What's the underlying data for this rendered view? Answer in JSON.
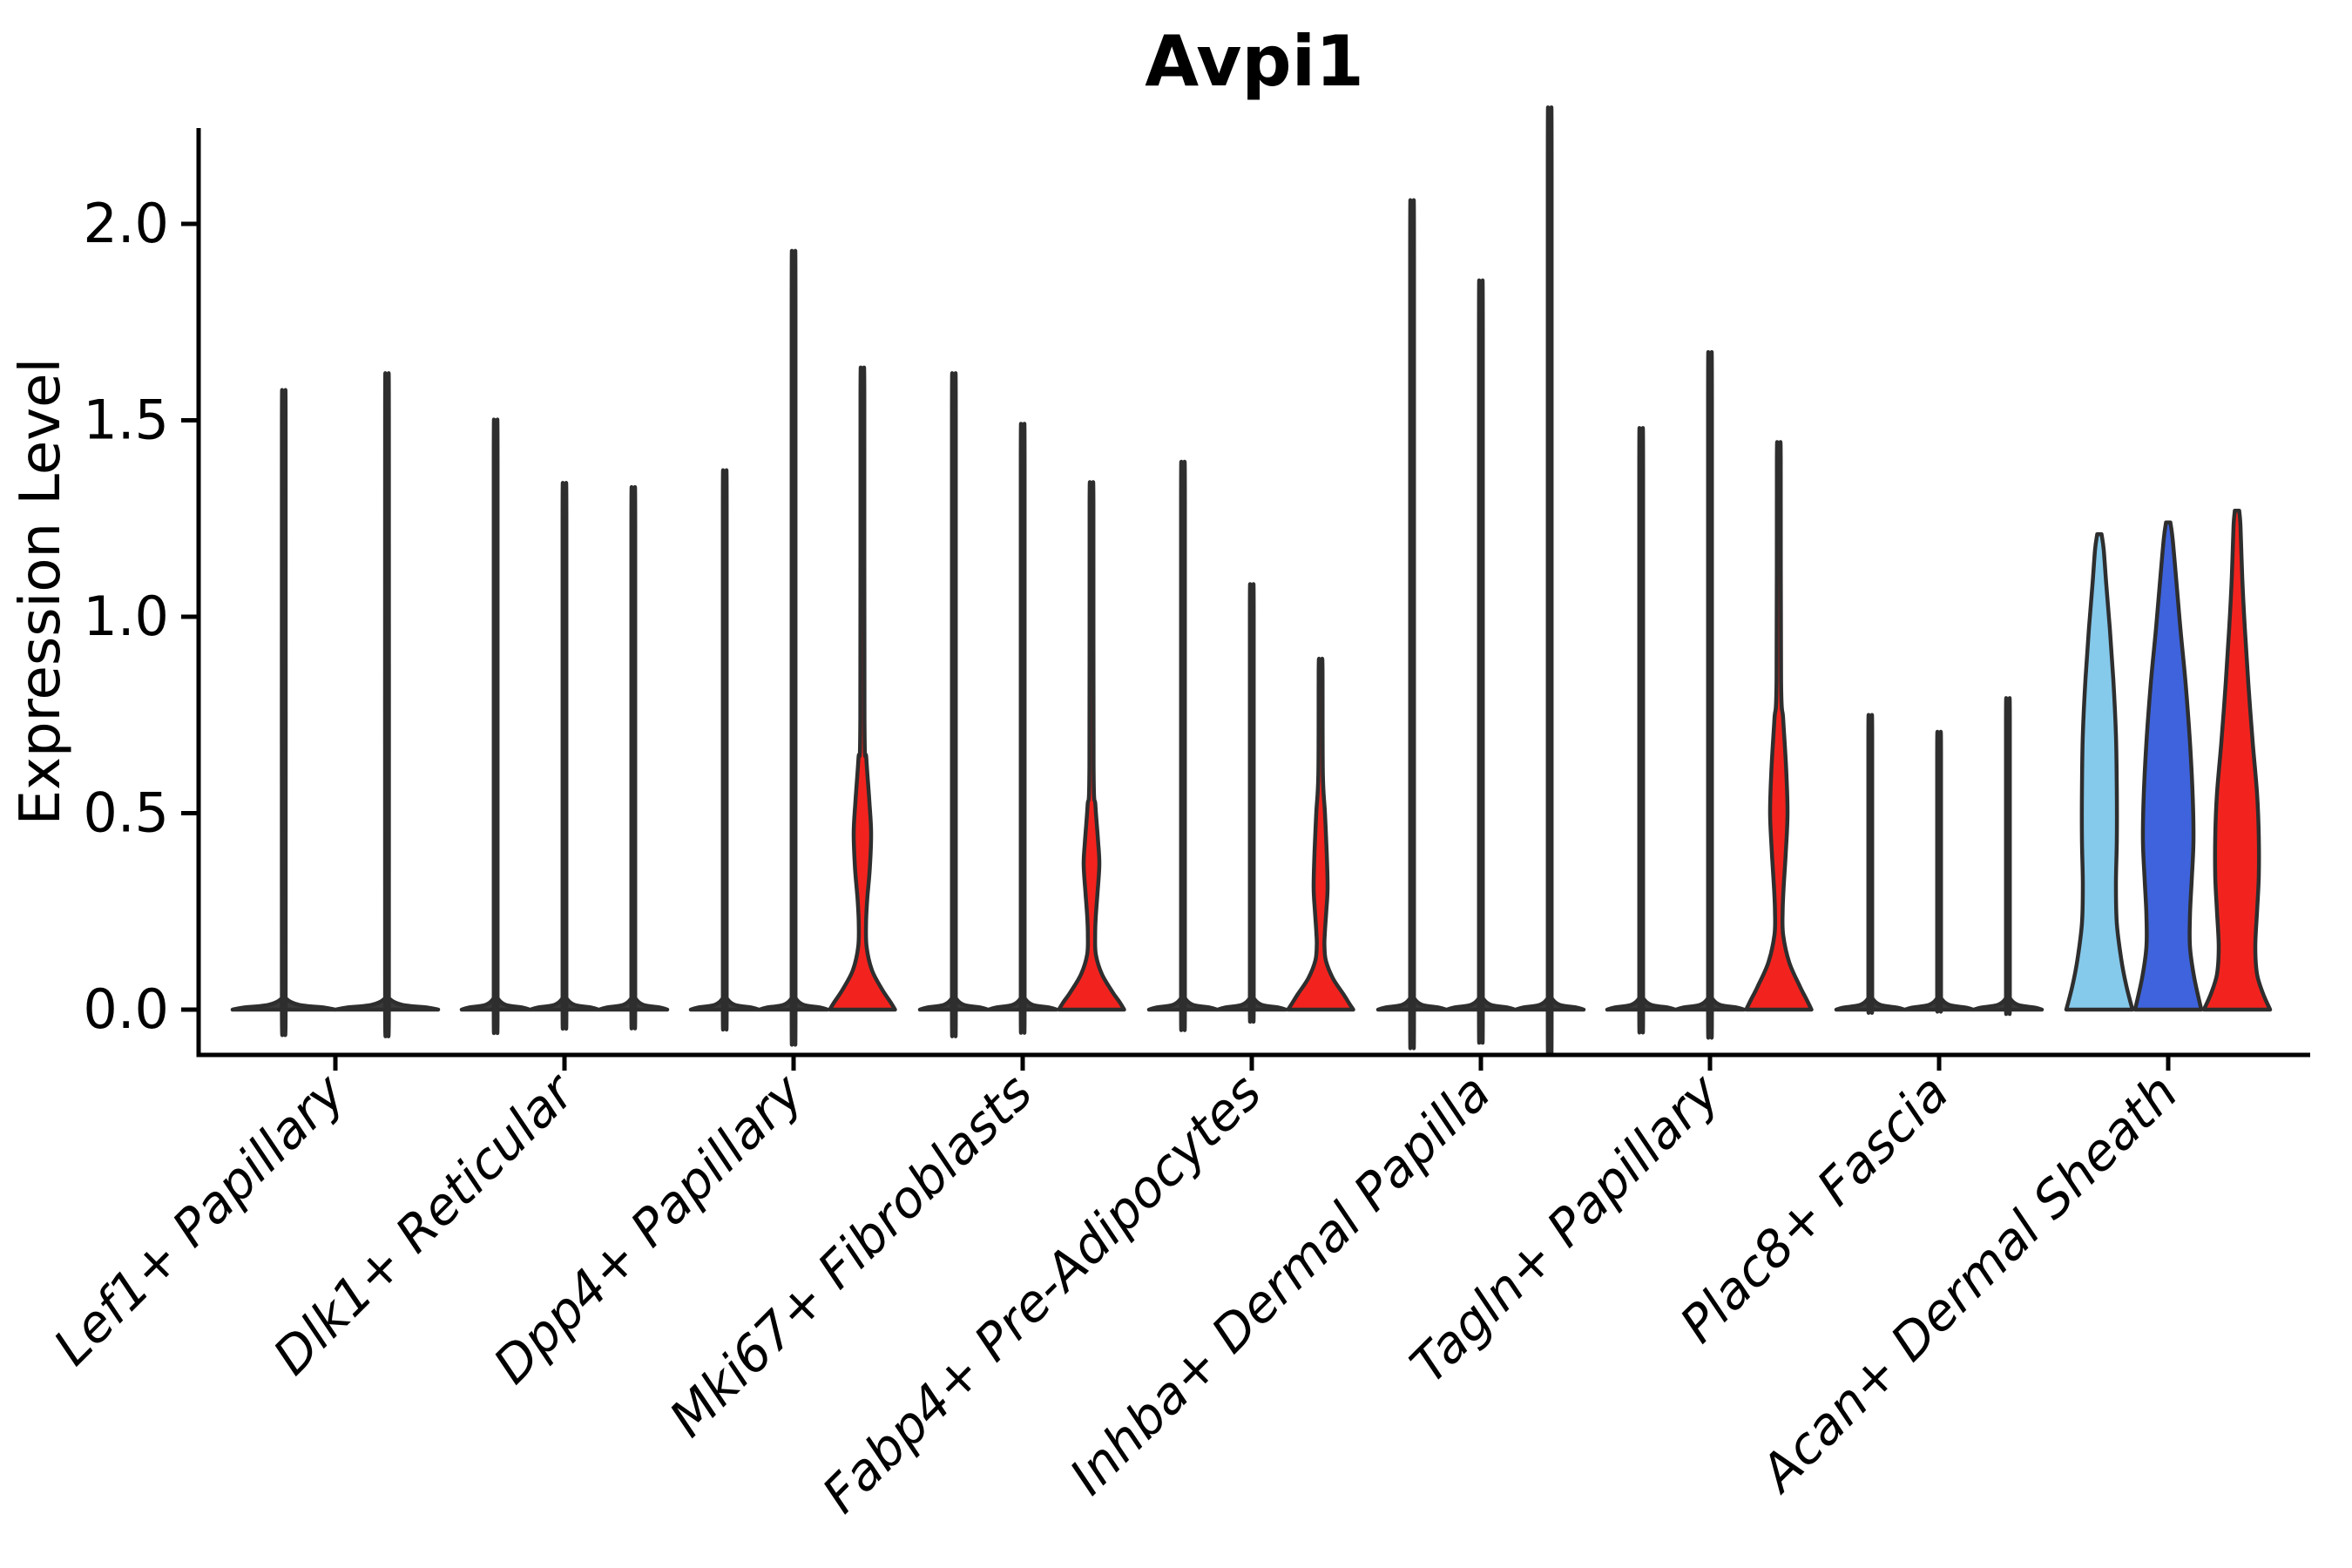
{
  "title": "Avpi1",
  "chart_data": {
    "type": "violin",
    "title": "Avpi1",
    "xlabel": "",
    "ylabel": "Expression Level",
    "ytick_labels": [
      "0.0",
      "0.5",
      "1.0",
      "1.5",
      "2.0"
    ],
    "ytick_values": [
      0.0,
      0.5,
      1.0,
      1.5,
      2.0
    ],
    "ylim": [
      -0.06,
      2.24
    ],
    "grid": false,
    "legend_position": "none",
    "categories": [
      "Lef1+ Papillary",
      "Dlk1+ Reticular",
      "Dpp4+ Papillary",
      "Mki67+ Fibroblasts",
      "Fabp4+ Pre-Adipocytes",
      "Inhba+ Dermal Papilla",
      "Tagln+ Papillary",
      "Plac8+ Fascia",
      "Acan+ Dermal Sheath"
    ],
    "palette": {
      "outline": "#2e2e2e",
      "spike": "#3a3a3a",
      "red": "#f2231e",
      "light_blue": "#85c9eb",
      "dark_blue": "#3e63dc",
      "axis": "#000000"
    },
    "clusters": [
      {
        "label": "Lef1+ Papillary",
        "violins": [
          {
            "kind": "spike",
            "color": "spike",
            "max": 1.48
          },
          {
            "kind": "spike",
            "color": "spike",
            "max": 1.52
          }
        ]
      },
      {
        "label": "Dlk1+ Reticular",
        "violins": [
          {
            "kind": "spike",
            "color": "spike",
            "max": 1.41
          },
          {
            "kind": "spike",
            "color": "spike",
            "max": 1.26
          },
          {
            "kind": "spike",
            "color": "spike",
            "max": 1.25
          }
        ]
      },
      {
        "label": "Dpp4+ Papillary",
        "violins": [
          {
            "kind": "spike",
            "color": "spike",
            "max": 1.29
          },
          {
            "kind": "spike",
            "color": "spike",
            "max": 1.81
          },
          {
            "kind": "shaped",
            "color": "red",
            "max": 1.58,
            "profile": [
              [
                1.58,
                1.4
              ],
              [
                1.57,
                2.2
              ],
              [
                0.74,
                2.4
              ],
              [
                0.64,
                4.5
              ],
              [
                0.53,
                8
              ],
              [
                0.45,
                10
              ],
              [
                0.36,
                8.5
              ],
              [
                0.28,
                5.5
              ],
              [
                0.22,
                4.2
              ],
              [
                0.16,
                4.8
              ],
              [
                0.1,
                11
              ],
              [
                0.05,
                23
              ],
              [
                0.02,
                32
              ],
              [
                0,
                37.5
              ]
            ]
          }
        ]
      },
      {
        "label": "Mki67+ Fibroblasts",
        "violins": [
          {
            "kind": "spike",
            "color": "spike",
            "max": 1.52
          },
          {
            "kind": "spike",
            "color": "spike",
            "max": 1.4
          },
          {
            "kind": "shaped",
            "color": "red",
            "max": 1.3,
            "profile": [
              [
                1.3,
                1.4
              ],
              [
                1.29,
                2.2
              ],
              [
                0.62,
                2.4
              ],
              [
                0.52,
                4.5
              ],
              [
                0.43,
                7.5
              ],
              [
                0.37,
                9
              ],
              [
                0.3,
                7
              ],
              [
                0.24,
                5
              ],
              [
                0.19,
                4.2
              ],
              [
                0.14,
                5
              ],
              [
                0.09,
                12
              ],
              [
                0.045,
                24
              ],
              [
                0.02,
                32
              ],
              [
                0,
                37.5
              ]
            ]
          }
        ]
      },
      {
        "label": "Fabp4+ Pre-Adipocytes",
        "violins": [
          {
            "kind": "spike",
            "color": "spike",
            "max": 1.31
          },
          {
            "kind": "spike",
            "color": "spike",
            "max": 1.02
          },
          {
            "kind": "shaped",
            "color": "red",
            "max": 0.88,
            "profile": [
              [
                0.88,
                1.4
              ],
              [
                0.87,
                2.2
              ],
              [
                0.6,
                2.6
              ],
              [
                0.5,
                5
              ],
              [
                0.4,
                7
              ],
              [
                0.31,
                8
              ],
              [
                0.25,
                6.5
              ],
              [
                0.2,
                5
              ],
              [
                0.165,
                4.4
              ],
              [
                0.125,
                6
              ],
              [
                0.08,
                14
              ],
              [
                0.04,
                26
              ],
              [
                0.015,
                33
              ],
              [
                0,
                37.5
              ]
            ]
          }
        ]
      },
      {
        "label": "Inhba+ Dermal Papilla",
        "violins": [
          {
            "kind": "spike",
            "color": "spike",
            "max": 1.93
          },
          {
            "kind": "spike",
            "color": "spike",
            "max": 1.74
          },
          {
            "kind": "spike",
            "color": "spike",
            "max": 2.15
          }
        ]
      },
      {
        "label": "Tagln+ Papillary",
        "violins": [
          {
            "kind": "spike",
            "color": "spike",
            "max": 1.39
          },
          {
            "kind": "spike",
            "color": "spike",
            "max": 1.57
          },
          {
            "kind": "shaped",
            "color": "red",
            "max": 1.41,
            "profile": [
              [
                1.41,
                1.4
              ],
              [
                1.4,
                2.2
              ],
              [
                0.84,
                2.6
              ],
              [
                0.74,
                5
              ],
              [
                0.61,
                8.5
              ],
              [
                0.5,
                10
              ],
              [
                0.4,
                8
              ],
              [
                0.31,
                5.5
              ],
              [
                0.25,
                4.4
              ],
              [
                0.19,
                5
              ],
              [
                0.12,
                12
              ],
              [
                0.06,
                24
              ],
              [
                0.025,
                32
              ],
              [
                0,
                37.5
              ]
            ]
          }
        ]
      },
      {
        "label": "Plac8+ Fascia",
        "violins": [
          {
            "kind": "spike",
            "color": "spike",
            "max": 0.71
          },
          {
            "kind": "spike",
            "color": "spike",
            "max": 0.67
          },
          {
            "kind": "spike",
            "color": "spike",
            "max": 0.75
          }
        ]
      },
      {
        "label": "Acan+ Dermal Sheath",
        "violins": [
          {
            "kind": "shaped",
            "color": "light_blue",
            "max": 1.21,
            "profile": [
              [
                1.21,
                2.5
              ],
              [
                1.17,
                5
              ],
              [
                1.08,
                8
              ],
              [
                0.97,
                12
              ],
              [
                0.84,
                16
              ],
              [
                0.7,
                19
              ],
              [
                0.56,
                20
              ],
              [
                0.43,
                20
              ],
              [
                0.32,
                19
              ],
              [
                0.22,
                20
              ],
              [
                0.13,
                25
              ],
              [
                0.06,
                31
              ],
              [
                0,
                38
              ]
            ]
          },
          {
            "kind": "shaped",
            "color": "dark_blue",
            "max": 1.24,
            "profile": [
              [
                1.24,
                2.5
              ],
              [
                1.2,
                5
              ],
              [
                1.1,
                9
              ],
              [
                0.97,
                14
              ],
              [
                0.83,
                20
              ],
              [
                0.68,
                25
              ],
              [
                0.55,
                28
              ],
              [
                0.43,
                29
              ],
              [
                0.33,
                27
              ],
              [
                0.24,
                25
              ],
              [
                0.16,
                25
              ],
              [
                0.08,
                30
              ],
              [
                0,
                38
              ]
            ]
          },
          {
            "kind": "shaped",
            "color": "red",
            "max": 1.27,
            "profile": [
              [
                1.27,
                2.5
              ],
              [
                1.23,
                4
              ],
              [
                1.1,
                6
              ],
              [
                0.97,
                9
              ],
              [
                0.83,
                13
              ],
              [
                0.68,
                18
              ],
              [
                0.55,
                23
              ],
              [
                0.44,
                25
              ],
              [
                0.34,
                25
              ],
              [
                0.25,
                23
              ],
              [
                0.16,
                21
              ],
              [
                0.09,
                23
              ],
              [
                0.04,
                30
              ],
              [
                0,
                38
              ]
            ]
          }
        ]
      }
    ]
  }
}
